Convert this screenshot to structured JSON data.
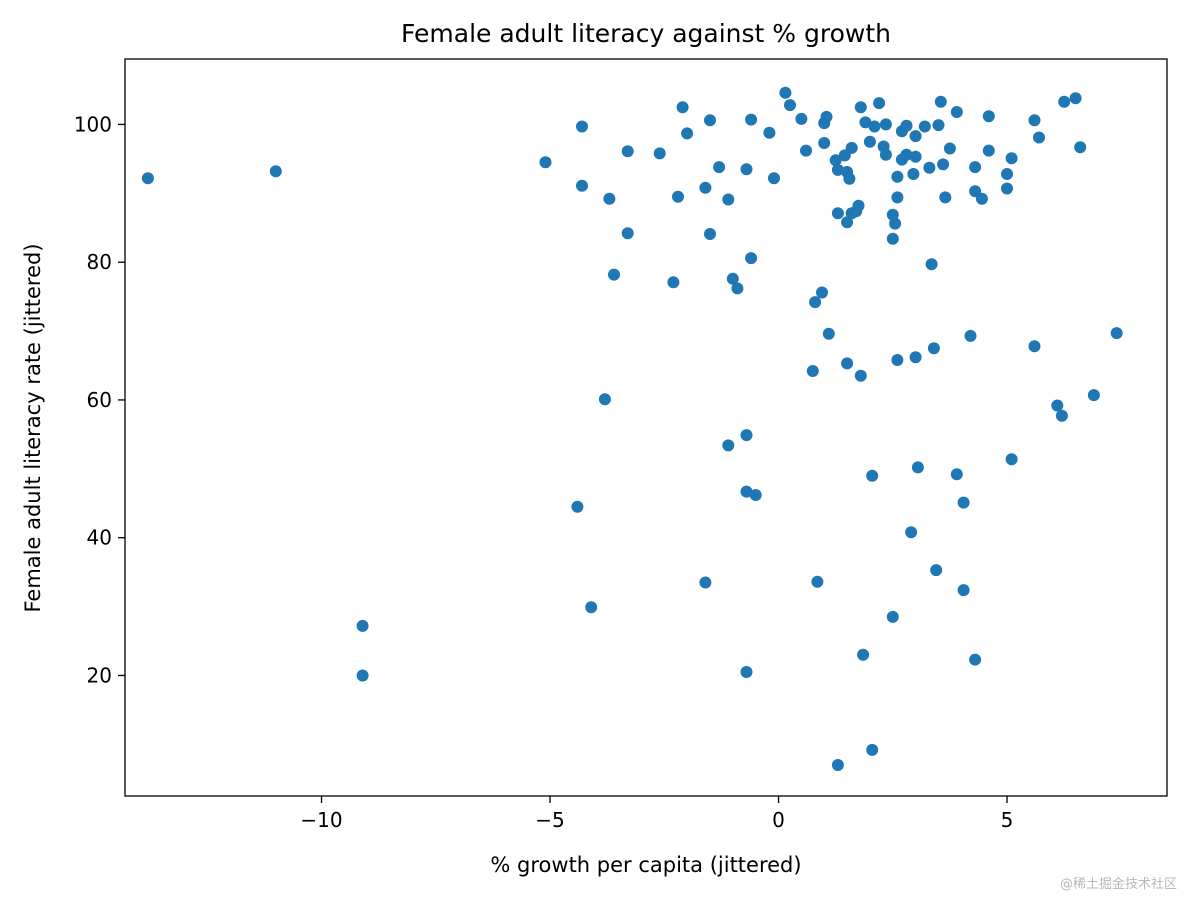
{
  "chart_data": {
    "type": "scatter",
    "title": "Female adult literacy against % growth",
    "xlabel": "% growth per capita (jittered)",
    "ylabel": "Female adult literacy rate (jittered)",
    "xlim": [
      -14.3,
      8.5
    ],
    "ylim": [
      2.5,
      109.5
    ],
    "xticks": [
      -10,
      -5,
      0,
      5
    ],
    "xtick_labels": [
      "−10",
      "−5",
      "0",
      "5"
    ],
    "yticks": [
      20,
      40,
      60,
      80,
      100
    ],
    "ytick_labels": [
      "20",
      "40",
      "60",
      "80",
      "100"
    ],
    "marker_color": "#1f77b4",
    "grid": false,
    "series": [
      {
        "points": [
          [
            -13.8,
            92.2
          ],
          [
            -11.0,
            93.2
          ],
          [
            -9.1,
            27.2
          ],
          [
            -9.1,
            20.0
          ],
          [
            -5.1,
            94.5
          ],
          [
            -4.4,
            44.5
          ],
          [
            -4.3,
            99.7
          ],
          [
            -4.3,
            91.1
          ],
          [
            -4.1,
            29.9
          ],
          [
            -3.8,
            60.1
          ],
          [
            -3.7,
            89.2
          ],
          [
            -3.6,
            78.2
          ],
          [
            -3.3,
            96.1
          ],
          [
            -3.3,
            84.2
          ],
          [
            -2.6,
            95.8
          ],
          [
            -2.3,
            77.1
          ],
          [
            -2.2,
            89.5
          ],
          [
            -2.1,
            102.5
          ],
          [
            -2.0,
            98.7
          ],
          [
            -1.6,
            90.8
          ],
          [
            -1.6,
            33.5
          ],
          [
            -1.5,
            100.6
          ],
          [
            -1.5,
            84.1
          ],
          [
            -1.3,
            93.8
          ],
          [
            -1.1,
            89.1
          ],
          [
            -1.1,
            53.4
          ],
          [
            -1.0,
            77.6
          ],
          [
            -0.9,
            76.2
          ],
          [
            -0.7,
            93.5
          ],
          [
            -0.7,
            54.9
          ],
          [
            -0.7,
            46.7
          ],
          [
            -0.7,
            20.5
          ],
          [
            -0.6,
            100.7
          ],
          [
            -0.6,
            80.6
          ],
          [
            -0.5,
            46.2
          ],
          [
            -0.2,
            98.8
          ],
          [
            -0.1,
            92.2
          ],
          [
            0.15,
            104.6
          ],
          [
            0.25,
            102.8
          ],
          [
            0.5,
            100.8
          ],
          [
            0.6,
            96.2
          ],
          [
            0.75,
            64.2
          ],
          [
            0.8,
            74.2
          ],
          [
            0.85,
            33.6
          ],
          [
            0.95,
            75.6
          ],
          [
            1.0,
            97.3
          ],
          [
            1.0,
            100.2
          ],
          [
            1.05,
            101.1
          ],
          [
            1.1,
            69.6
          ],
          [
            1.25,
            94.8
          ],
          [
            1.3,
            93.4
          ],
          [
            1.3,
            87.1
          ],
          [
            1.3,
            7.0
          ],
          [
            1.45,
            95.5
          ],
          [
            1.5,
            93.1
          ],
          [
            1.5,
            85.8
          ],
          [
            1.5,
            65.3
          ],
          [
            1.55,
            92.1
          ],
          [
            1.6,
            96.6
          ],
          [
            1.6,
            87.1
          ],
          [
            1.7,
            87.4
          ],
          [
            1.75,
            88.2
          ],
          [
            1.8,
            102.5
          ],
          [
            1.8,
            63.5
          ],
          [
            1.85,
            23.0
          ],
          [
            1.9,
            100.3
          ],
          [
            2.0,
            97.5
          ],
          [
            2.05,
            49.0
          ],
          [
            2.05,
            9.2
          ],
          [
            2.1,
            99.7
          ],
          [
            2.2,
            103.1
          ],
          [
            2.3,
            96.8
          ],
          [
            2.35,
            95.6
          ],
          [
            2.35,
            100.0
          ],
          [
            2.5,
            86.9
          ],
          [
            2.5,
            83.4
          ],
          [
            2.5,
            28.5
          ],
          [
            2.55,
            85.6
          ],
          [
            2.6,
            92.4
          ],
          [
            2.6,
            89.4
          ],
          [
            2.6,
            65.8
          ],
          [
            2.7,
            94.9
          ],
          [
            2.7,
            99.0
          ],
          [
            2.8,
            99.8
          ],
          [
            2.8,
            95.6
          ],
          [
            2.9,
            40.8
          ],
          [
            2.95,
            92.8
          ],
          [
            3.0,
            98.3
          ],
          [
            3.0,
            66.2
          ],
          [
            3.0,
            95.3
          ],
          [
            3.05,
            50.2
          ],
          [
            3.2,
            99.7
          ],
          [
            3.3,
            93.7
          ],
          [
            3.35,
            79.7
          ],
          [
            3.4,
            67.5
          ],
          [
            3.45,
            35.3
          ],
          [
            3.5,
            99.9
          ],
          [
            3.55,
            103.3
          ],
          [
            3.6,
            94.2
          ],
          [
            3.65,
            89.4
          ],
          [
            3.75,
            96.5
          ],
          [
            3.9,
            101.8
          ],
          [
            3.9,
            49.2
          ],
          [
            4.05,
            32.4
          ],
          [
            4.05,
            45.1
          ],
          [
            4.2,
            69.3
          ],
          [
            4.3,
            93.8
          ],
          [
            4.3,
            90.3
          ],
          [
            4.3,
            22.3
          ],
          [
            4.45,
            89.2
          ],
          [
            4.6,
            96.2
          ],
          [
            4.6,
            101.2
          ],
          [
            5.0,
            92.8
          ],
          [
            5.0,
            90.7
          ],
          [
            5.1,
            95.1
          ],
          [
            5.1,
            51.4
          ],
          [
            5.6,
            100.6
          ],
          [
            5.6,
            67.8
          ],
          [
            5.7,
            98.1
          ],
          [
            6.1,
            59.2
          ],
          [
            6.2,
            57.7
          ],
          [
            6.25,
            103.3
          ],
          [
            6.5,
            103.8
          ],
          [
            6.6,
            96.7
          ],
          [
            6.9,
            60.7
          ],
          [
            7.4,
            69.7
          ]
        ]
      }
    ]
  },
  "watermark": "@稀土掘金技术社区"
}
